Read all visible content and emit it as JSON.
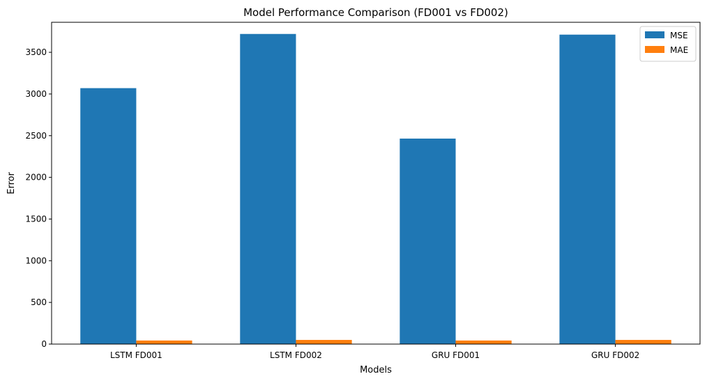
{
  "chart_data": {
    "type": "bar",
    "title": "Model Performance Comparison (FD001 vs FD002)",
    "xlabel": "Models",
    "ylabel": "Error",
    "categories": [
      "LSTM FD001",
      "LSTM FD002",
      "GRU FD001",
      "GRU FD002"
    ],
    "series": [
      {
        "name": "MSE",
        "color": "#1f77b4",
        "values": [
          3070,
          3720,
          2465,
          3712
        ]
      },
      {
        "name": "MAE",
        "color": "#ff7f0e",
        "values": [
          43,
          50,
          43,
          50
        ]
      }
    ],
    "ylim": [
      0,
      3860
    ],
    "yticks": [
      0,
      500,
      1000,
      1500,
      2000,
      2500,
      3000,
      3500
    ],
    "legend": "top-right",
    "grid": false
  }
}
